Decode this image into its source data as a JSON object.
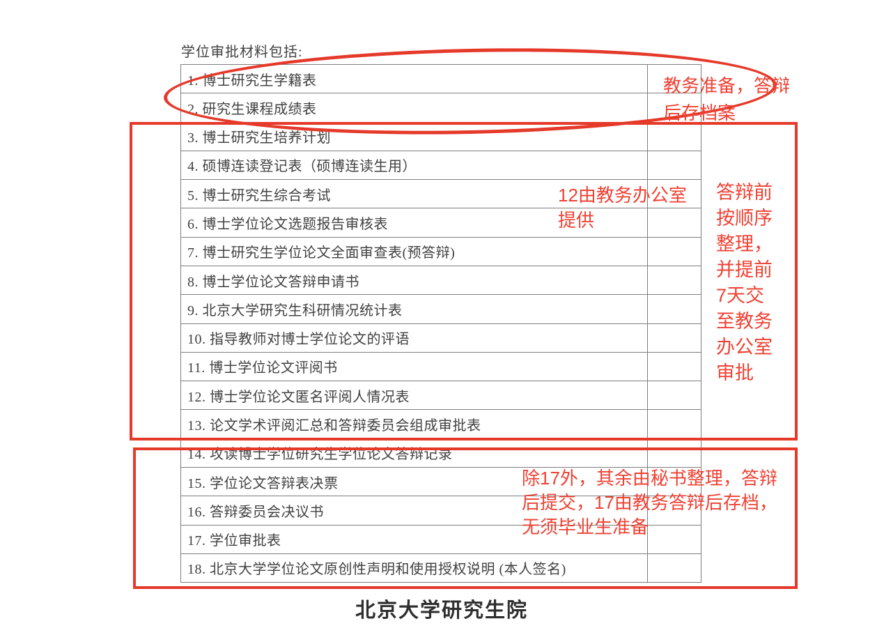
{
  "colors": {
    "annotation_red": "#e5392a",
    "annotation_text_red": "#ef4133",
    "table_border": "#7d7d7d",
    "table_text": "#414141",
    "footer_text": "#2e2e2e",
    "page_bg": "#ffffff"
  },
  "heading": "学位审批材料包括:",
  "table": {
    "items": [
      "1. 博士研究生学籍表",
      "2. 研究生课程成绩表",
      "3. 博士研究生培养计划",
      "4. 硕博连读登记表（硕博连读生用）",
      "5. 博士研究生综合考试",
      "6. 博士学位论文选题报告审核表",
      "7. 博士研究生学位论文全面审查表(预答辩)",
      "8. 博士学位论文答辩申请书",
      "9. 北京大学研究生科研情况统计表",
      "10. 指导教师对博士学位论文的评语",
      "11. 博士学位论文评阅书",
      "12. 博士学位论文匿名评阅人情况表",
      "13. 论文学术评阅汇总和答辩委员会组成审批表",
      "14. 攻读博士学位研究生学位论文答辩记录",
      "15. 学位论文答辩表决票",
      "16. 答辩委员会决议书",
      "17. 学位审批表",
      "18. 北京大学学位论文原创性声明和使用授权说明 (本人签名)"
    ]
  },
  "annotations": {
    "top_note": {
      "lines": [
        "教务准备，答辩",
        "后存档案"
      ]
    },
    "mid_note": {
      "lines": [
        "12由教务办公室",
        "提供"
      ]
    },
    "side_note": {
      "lines": [
        "答辩前",
        "按顺序",
        "整理，",
        "并提前",
        "7天交",
        "至教务",
        "办公室",
        "审批"
      ]
    },
    "bottom_note": {
      "lines": [
        "除17外，其余由秘书整理，答辩",
        "后提交，17由教务答辩后存档，",
        "无须毕业生准备"
      ]
    }
  },
  "footer": {
    "title": "北京大学研究生院"
  }
}
